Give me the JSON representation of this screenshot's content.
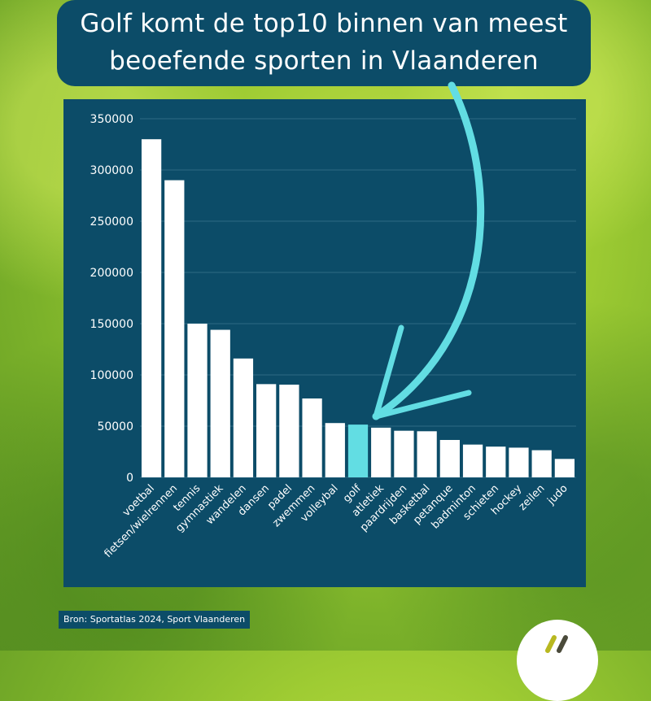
{
  "title": {
    "line1": "Golf komt de top10 binnen van meest",
    "line2": "beoefende sporten in Vlaanderen"
  },
  "source": "Bron: Sportatlas 2024, Sport Vlaanderen",
  "colors": {
    "panel": "#0c4c68",
    "bar": "#ffffff",
    "highlight": "#62dde3",
    "axis_text": "#ffffff",
    "grid": "#2e6a85"
  },
  "chart_data": {
    "type": "bar",
    "title": "Golf komt de top10 binnen van meest beoefende sporten in Vlaanderen",
    "xlabel": "",
    "ylabel": "",
    "ylim": [
      0,
      350000
    ],
    "yticks": [
      0,
      50000,
      100000,
      150000,
      200000,
      250000,
      300000,
      350000
    ],
    "ytick_labels": [
      "0",
      "50000",
      "100000",
      "150000",
      "200000",
      "250000",
      "300000",
      "350000"
    ],
    "grid": true,
    "highlight_category": "golf",
    "categories": [
      "voetbal",
      "fietsen/wielrennen",
      "tennis",
      "gymnastiek",
      "wandelen",
      "dansen",
      "padel",
      "zwemmen",
      "volleybal",
      "golf",
      "atletiek",
      "paardrijden",
      "basketbal",
      "petanque",
      "badminton",
      "schieten",
      "hockey",
      "zeilen",
      "judo"
    ],
    "values": [
      330000,
      290000,
      150000,
      144000,
      116000,
      91000,
      90500,
      77000,
      53000,
      51500,
      48500,
      45500,
      45000,
      36500,
      32000,
      30000,
      29000,
      26500,
      18000
    ]
  }
}
